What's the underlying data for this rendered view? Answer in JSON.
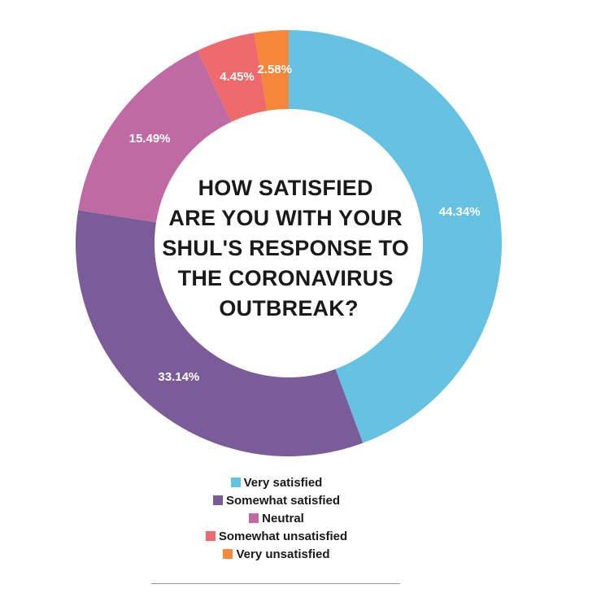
{
  "chart_data": {
    "type": "pie",
    "style": "donut",
    "title_lines": [
      "HOW SATISFIED",
      "ARE YOU WITH YOUR",
      "SHUL'S RESPONSE TO",
      "THE CORONAVIRUS",
      "OUTBREAK?"
    ],
    "slices": [
      {
        "name": "Very satisfied",
        "value": 44.34,
        "label": "44.34%",
        "color": "#67c1e0"
      },
      {
        "name": "Somewhat satisfied",
        "value": 33.14,
        "label": "33.14%",
        "color": "#7a5c98"
      },
      {
        "name": "Neutral",
        "value": 15.49,
        "label": "15.49%",
        "color": "#bf6aa2"
      },
      {
        "name": "Somewhat unsatisfied",
        "value": 4.45,
        "label": "4.45%",
        "color": "#ee6a6c"
      },
      {
        "name": "Very unsatisfied",
        "value": 2.58,
        "label": "2.58%",
        "color": "#f5863a"
      }
    ],
    "legend_position": "bottom-center"
  }
}
